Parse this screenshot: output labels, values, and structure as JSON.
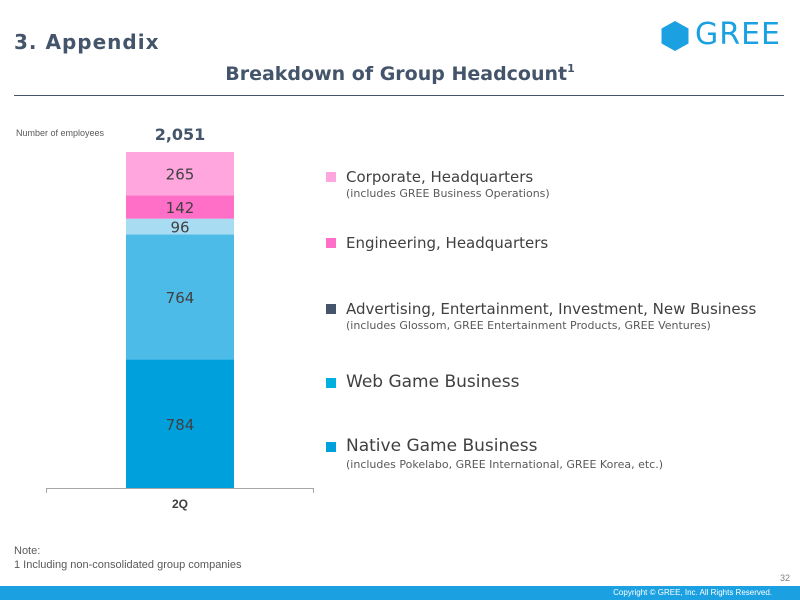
{
  "section": {
    "title": "3. Appendix"
  },
  "logo": {
    "text": "GREE",
    "color": "#1ba1e2"
  },
  "slide": {
    "title": "Breakdown of Group Headcount",
    "title_sup": "1"
  },
  "chart_caption": "Number of employees",
  "chart_data": {
    "type": "bar",
    "stacked": true,
    "categories": [
      "2Q"
    ],
    "total_label": "2,051",
    "series": [
      {
        "name": "Native Game Business",
        "values": [
          784
        ],
        "color": "#00a0dd"
      },
      {
        "name": "Web Game Business",
        "values": [
          764
        ],
        "color": "#4cbbe8"
      },
      {
        "name": "Advertising, Entertainment, Investment, New Business",
        "values": [
          96
        ],
        "color": "#a7dcf3"
      },
      {
        "name": "Engineering, Headquarters",
        "values": [
          142
        ],
        "color": "#ff6ec7"
      },
      {
        "name": "Corporate, Headquarters",
        "values": [
          265
        ],
        "color": "#ffa6de"
      }
    ]
  },
  "legend": [
    {
      "label": "Corporate, Headquarters",
      "sub": "(includes GREE  Business Operations)",
      "color": "#ffa6de"
    },
    {
      "label": "Engineering, Headquarters",
      "sub": "",
      "color": "#ff6ec7"
    },
    {
      "label": "Advertising, Entertainment,   Investment, New Business",
      "sub": "(includes Glossom, GREE Entertainment Products, GREE Ventures)",
      "color": "#44546a"
    },
    {
      "label": "Web Game Business",
      "sub": "",
      "color": "#00b0e0"
    },
    {
      "label": "Native Game Business",
      "sub": "(includes Pokelabo, GREE International, GREE Korea, etc.)",
      "color": "#00a0dd"
    }
  ],
  "note": {
    "title": "Note:",
    "text": "1  Including non-consolidated group companies"
  },
  "page_number": "32",
  "copyright": "Copyright © GREE, Inc. All Rights Reserved.",
  "colors": {
    "title": "#44546a",
    "footer": "#1ba1e2"
  }
}
